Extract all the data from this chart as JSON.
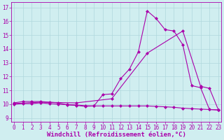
{
  "xlabel": "Windchill (Refroidissement éolien,°C)",
  "bg_color": "#d0eef0",
  "line_color": "#aa00aa",
  "grid_color": "#b0d8dc",
  "x_ticks": [
    0,
    1,
    2,
    3,
    4,
    5,
    6,
    7,
    8,
    9,
    10,
    11,
    12,
    13,
    14,
    15,
    16,
    17,
    18,
    19,
    20,
    21,
    22,
    23
  ],
  "y_ticks": [
    9,
    10,
    11,
    12,
    13,
    14,
    15,
    16,
    17
  ],
  "xlim": [
    -0.3,
    23.3
  ],
  "ylim": [
    8.75,
    17.4
  ],
  "line1_x": [
    0,
    1,
    2,
    3,
    4,
    5,
    6,
    7,
    8,
    9,
    10,
    11,
    12,
    13,
    14,
    15,
    16,
    17,
    18,
    19,
    20,
    21,
    22,
    23
  ],
  "line1_y": [
    10.1,
    10.2,
    10.2,
    10.2,
    10.15,
    10.1,
    9.95,
    9.92,
    9.85,
    9.88,
    10.7,
    10.75,
    11.85,
    12.55,
    13.8,
    16.75,
    16.2,
    15.4,
    15.3,
    14.3,
    11.35,
    11.2,
    9.62,
    9.6
  ],
  "line2_x": [
    0,
    1,
    2,
    3,
    4,
    5,
    6,
    7,
    8,
    9,
    10,
    11,
    12,
    13,
    14,
    15,
    16,
    17,
    18,
    19,
    20,
    21,
    22,
    23
  ],
  "line2_y": [
    10.0,
    10.05,
    10.05,
    10.1,
    10.05,
    10.0,
    9.98,
    9.95,
    9.9,
    9.88,
    9.88,
    9.88,
    9.88,
    9.88,
    9.88,
    9.88,
    9.85,
    9.82,
    9.78,
    9.72,
    9.68,
    9.65,
    9.62,
    9.58
  ],
  "line3_x": [
    0,
    3,
    7,
    11,
    15,
    19,
    21,
    22,
    23
  ],
  "line3_y": [
    10.05,
    10.15,
    10.1,
    10.4,
    13.7,
    15.3,
    11.3,
    11.15,
    9.6
  ],
  "marker": "D",
  "marker_size": 2.0,
  "linewidth": 0.8,
  "tick_fontsize": 5.5,
  "xlabel_fontsize": 6.5
}
